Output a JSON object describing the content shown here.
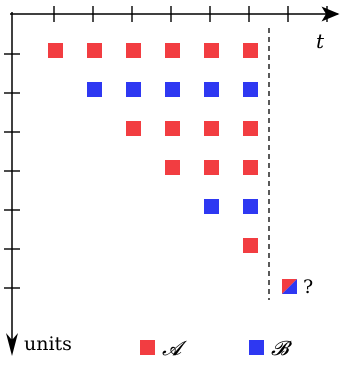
{
  "diagram": {
    "time_axis_label": "t",
    "units_axis_label": "units",
    "unknown_marker_label": "?",
    "legend": [
      {
        "key": "A",
        "label": "𝓐",
        "color": "#f23d41"
      },
      {
        "key": "B",
        "label": "𝓑",
        "color": "#2e38f2"
      }
    ],
    "colors": {
      "A": "#f23d41",
      "B": "#2e38f2",
      "axis": "#000000"
    },
    "grid": {
      "time_ticks": 8,
      "unit_ticks": 7
    },
    "rows": [
      [
        "A",
        "A",
        "A",
        "A",
        "A",
        "A"
      ],
      [
        null,
        "B",
        "B",
        "B",
        "B",
        "B"
      ],
      [
        null,
        null,
        "A",
        "A",
        "A",
        "A"
      ],
      [
        null,
        null,
        null,
        "A",
        "A",
        "A"
      ],
      [
        null,
        null,
        null,
        null,
        "B",
        "B"
      ],
      [
        null,
        null,
        null,
        null,
        null,
        "A"
      ]
    ],
    "unknown_cell": {
      "row": 7,
      "col": 7,
      "colors": [
        "A",
        "B"
      ]
    }
  }
}
